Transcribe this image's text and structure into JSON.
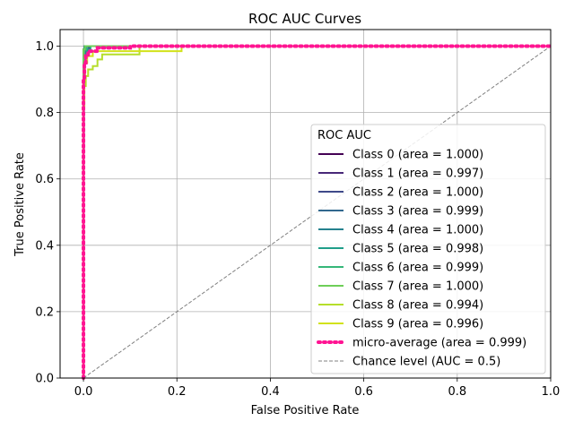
{
  "chart_data": {
    "type": "line",
    "title": "ROC AUC Curves",
    "xlabel": "False Positive Rate",
    "ylabel": "True Positive Rate",
    "xlim": [
      -0.05,
      1.0
    ],
    "ylim": [
      0.0,
      1.05
    ],
    "xticks": [
      0.0,
      0.2,
      0.4,
      0.6,
      0.8,
      1.0
    ],
    "yticks": [
      0.0,
      0.2,
      0.4,
      0.6,
      0.8,
      1.0
    ],
    "xtick_labels": [
      "0.0",
      "0.2",
      "0.4",
      "0.6",
      "0.8",
      "1.0"
    ],
    "ytick_labels": [
      "0.0",
      "0.2",
      "0.4",
      "0.6",
      "0.8",
      "1.0"
    ],
    "grid": true,
    "legend": {
      "title": "ROC AUC",
      "placement": "lower-right"
    },
    "series": [
      {
        "name": "Class 0 (area = 1.000)",
        "color": "#440154",
        "style": "solid",
        "x": [
          0,
          0,
          0.001,
          0.001,
          0.003,
          0.003,
          1.0
        ],
        "y": [
          0,
          0.68,
          0.68,
          0.9,
          0.9,
          1.0,
          1.0
        ]
      },
      {
        "name": "Class 1 (area = 0.997)",
        "color": "#482878",
        "style": "solid",
        "x": [
          0,
          0,
          0.003,
          0.003,
          0.008,
          0.008,
          0.012,
          0.012,
          1.0
        ],
        "y": [
          0,
          0.95,
          0.95,
          0.97,
          0.97,
          0.98,
          0.98,
          1.0,
          1.0
        ]
      },
      {
        "name": "Class 2 (area = 1.000)",
        "color": "#3e4989",
        "style": "solid",
        "x": [
          0,
          0,
          0.002,
          0.002,
          1.0
        ],
        "y": [
          0,
          0.99,
          0.99,
          1.0,
          1.0
        ]
      },
      {
        "name": "Class 3 (area = 0.999)",
        "color": "#31688e",
        "style": "solid",
        "x": [
          0,
          0,
          0.004,
          0.004,
          0.01,
          0.01,
          1.0
        ],
        "y": [
          0,
          0.96,
          0.96,
          0.98,
          0.98,
          1.0,
          1.0
        ]
      },
      {
        "name": "Class 4 (area = 1.000)",
        "color": "#26828e",
        "style": "solid",
        "x": [
          0,
          0,
          0.002,
          0.002,
          1.0
        ],
        "y": [
          0,
          0.99,
          0.99,
          1.0,
          1.0
        ]
      },
      {
        "name": "Class 5 (area = 0.998)",
        "color": "#1f9e89",
        "style": "solid",
        "x": [
          0,
          0,
          0.003,
          0.003,
          0.007,
          0.007,
          0.015,
          0.015,
          1.0
        ],
        "y": [
          0,
          0.94,
          0.94,
          0.97,
          0.97,
          0.99,
          0.99,
          1.0,
          1.0
        ]
      },
      {
        "name": "Class 6 (area = 0.999)",
        "color": "#35b779",
        "style": "solid",
        "x": [
          0,
          0,
          0.002,
          0.002,
          0.006,
          0.006,
          1.0
        ],
        "y": [
          0,
          0.97,
          0.97,
          0.99,
          0.99,
          1.0,
          1.0
        ]
      },
      {
        "name": "Class 7 (area = 1.000)",
        "color": "#6ece58",
        "style": "solid",
        "x": [
          0,
          0,
          0.003,
          0.003,
          1.0
        ],
        "y": [
          0,
          0.99,
          0.99,
          1.0,
          1.0
        ]
      },
      {
        "name": "Class 8 (area = 0.994)",
        "color": "#b5de2b",
        "style": "solid",
        "x": [
          0,
          0,
          0.002,
          0.002,
          0.005,
          0.005,
          0.01,
          0.01,
          0.02,
          0.02,
          0.03,
          0.03,
          0.04,
          0.04,
          0.12,
          0.12,
          1.0
        ],
        "y": [
          0,
          0.82,
          0.82,
          0.88,
          0.88,
          0.91,
          0.91,
          0.93,
          0.93,
          0.94,
          0.94,
          0.96,
          0.96,
          0.975,
          0.975,
          1.0,
          1.0
        ]
      },
      {
        "name": "Class 9 (area = 0.996)",
        "color": "#d2e21b",
        "style": "solid",
        "x": [
          0,
          0,
          0.003,
          0.003,
          0.008,
          0.008,
          0.02,
          0.02,
          0.21,
          0.21,
          1.0
        ],
        "y": [
          0,
          0.9,
          0.9,
          0.95,
          0.95,
          0.97,
          0.97,
          0.985,
          0.985,
          1.0,
          1.0
        ]
      },
      {
        "name": "micro-average (area = 0.999)",
        "color": "#ff1493",
        "style": "dotted",
        "x": [
          0,
          0,
          0.002,
          0.002,
          0.005,
          0.005,
          0.01,
          0.01,
          0.03,
          0.03,
          0.1,
          0.1,
          1.0
        ],
        "y": [
          0,
          0.9,
          0.9,
          0.95,
          0.95,
          0.97,
          0.97,
          0.985,
          0.985,
          0.995,
          0.995,
          1.0,
          1.0
        ]
      },
      {
        "name": "Chance level (AUC = 0.5)",
        "color": "#808080",
        "style": "dashed",
        "x": [
          0,
          1.0
        ],
        "y": [
          0,
          1.0
        ]
      }
    ]
  }
}
